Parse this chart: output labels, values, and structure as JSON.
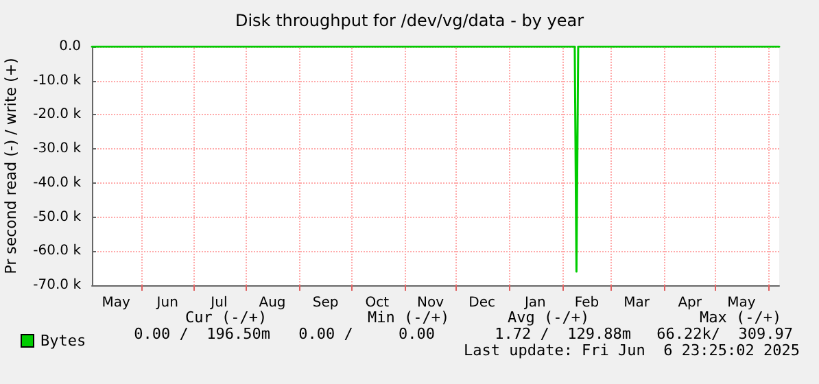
{
  "chart_data": {
    "type": "line",
    "title": "Disk throughput for /dev/vg/data - by year",
    "ylabel": "Pr second read (-) / write (+)",
    "x": [
      "2024-05-03",
      "2025-02-08",
      "2025-02-09",
      "2025-02-10",
      "2025-06-07"
    ],
    "series": [
      {
        "name": "Bytes",
        "color": "#00cc00",
        "values": [
          0,
          0,
          -66000,
          0,
          0
        ]
      }
    ],
    "xlim": [
      "2024-05-03",
      "2025-06-07"
    ],
    "xticks": [
      {
        "value": "2024-05-17",
        "label": "May"
      },
      {
        "value": "2024-06-01",
        "label": null
      },
      {
        "value": "2024-06-16",
        "label": "Jun"
      },
      {
        "value": "2024-07-01",
        "label": null
      },
      {
        "value": "2024-07-16",
        "label": "Jul"
      },
      {
        "value": "2024-08-01",
        "label": null
      },
      {
        "value": "2024-08-16",
        "label": "Aug"
      },
      {
        "value": "2024-09-01",
        "label": null
      },
      {
        "value": "2024-09-16",
        "label": "Sep"
      },
      {
        "value": "2024-10-01",
        "label": null
      },
      {
        "value": "2024-10-16",
        "label": "Oct"
      },
      {
        "value": "2024-11-01",
        "label": null
      },
      {
        "value": "2024-11-16",
        "label": "Nov"
      },
      {
        "value": "2024-12-01",
        "label": null
      },
      {
        "value": "2024-12-16",
        "label": "Dec"
      },
      {
        "value": "2025-01-01",
        "label": null
      },
      {
        "value": "2025-01-16",
        "label": "Jan"
      },
      {
        "value": "2025-02-01",
        "label": null
      },
      {
        "value": "2025-02-15",
        "label": "Feb"
      },
      {
        "value": "2025-03-01",
        "label": null
      },
      {
        "value": "2025-03-16",
        "label": "Mar"
      },
      {
        "value": "2025-04-01",
        "label": null
      },
      {
        "value": "2025-04-16",
        "label": "Apr"
      },
      {
        "value": "2025-05-01",
        "label": null
      },
      {
        "value": "2025-05-16",
        "label": "May"
      },
      {
        "value": "2025-06-01",
        "label": null
      }
    ],
    "ylim": [
      -70000,
      0
    ],
    "yticks": [
      {
        "value": -70000,
        "label": "-70.0 k"
      },
      {
        "value": -60000,
        "label": "-60.0 k"
      },
      {
        "value": -50000,
        "label": "-50.0 k"
      },
      {
        "value": -40000,
        "label": "-40.0 k"
      },
      {
        "value": -30000,
        "label": "-30.0 k"
      },
      {
        "value": -20000,
        "label": "-20.0 k"
      },
      {
        "value": -10000,
        "label": "-10.0 k"
      },
      {
        "value": 0,
        "label": "0.0"
      }
    ],
    "grid": true,
    "legend": "bottom left",
    "marker": "none",
    "line_style": "solid",
    "annotations": [
      "Cur (-/+)",
      "Min (-/+)",
      "Avg (-/+)",
      "Max (-/+)",
      "0.00 /  196.50m",
      "0.00 /     0.00",
      "1.72 /  129.88m",
      "66.22k/  309.97",
      "Last update: Fri Jun  6 23:25:02 2025"
    ]
  }
}
